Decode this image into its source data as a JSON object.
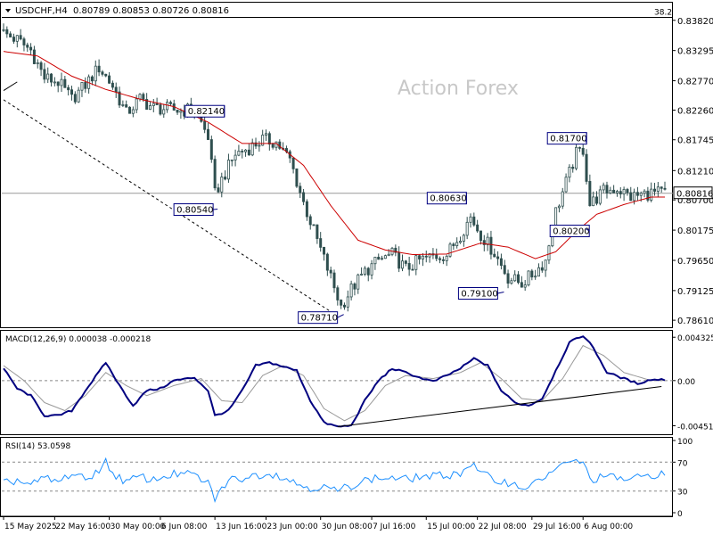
{
  "header": {
    "symbol": "USDCHF,H4",
    "ohlc": "0.80789 0.80853 0.80726 0.80816"
  },
  "watermark": "Action Forex",
  "colors": {
    "candle": "#2f4f4f",
    "ma": "#cc0000",
    "macd": "#000080",
    "macd_signal": "#999999",
    "rsi": "#1e90ff",
    "grid": "#888888",
    "watermark": "#c8c8c8",
    "label_box": "#000080"
  },
  "chart_data": [
    {
      "type": "candlestick",
      "name": "USDCHF H4 price",
      "ylim": [
        0.7855,
        0.8408
      ],
      "y_ticks": [
        "0.83820",
        "0.83295",
        "0.82770",
        "0.82260",
        "0.81745",
        "0.81210",
        "0.80700",
        "0.80175",
        "0.79650",
        "0.79125",
        "0.78610"
      ],
      "current_price": "0.80816",
      "fib_level": {
        "label": "38.2",
        "value": 0.8387
      },
      "annotations": [
        {
          "text": "0.82140",
          "x": 64,
          "value": 0.8214
        },
        {
          "text": "0.80540",
          "x": 62,
          "value": 0.8054
        },
        {
          "text": "0.78710",
          "x": 99,
          "value": 0.7871
        },
        {
          "text": "0.80630",
          "x": 135,
          "value": 0.8063
        },
        {
          "text": "0.79100",
          "x": 146,
          "value": 0.791
        },
        {
          "text": "0.81700",
          "x": 170,
          "value": 0.817
        },
        {
          "text": "0.80200",
          "x": 170,
          "value": 0.802
        }
      ],
      "close_path": [
        [
          0,
          0.836
        ],
        [
          4,
          0.8348
        ],
        [
          8,
          0.833
        ],
        [
          12,
          0.8282
        ],
        [
          16,
          0.8275
        ],
        [
          20,
          0.8245
        ],
        [
          24,
          0.827
        ],
        [
          28,
          0.83
        ],
        [
          32,
          0.8268
        ],
        [
          36,
          0.822
        ],
        [
          40,
          0.8245
        ],
        [
          44,
          0.823
        ],
        [
          48,
          0.8228
        ],
        [
          52,
          0.8225
        ],
        [
          56,
          0.8228
        ],
        [
          60,
          0.818
        ],
        [
          62,
          0.808
        ],
        [
          64,
          0.8105
        ],
        [
          68,
          0.815
        ],
        [
          72,
          0.816
        ],
        [
          76,
          0.8175
        ],
        [
          80,
          0.817
        ],
        [
          84,
          0.814
        ],
        [
          88,
          0.8065
        ],
        [
          92,
          0.8
        ],
        [
          96,
          0.7935
        ],
        [
          99,
          0.7885
        ],
        [
          102,
          0.7915
        ],
        [
          106,
          0.7945
        ],
        [
          110,
          0.7965
        ],
        [
          114,
          0.7975
        ],
        [
          118,
          0.795
        ],
        [
          122,
          0.7965
        ],
        [
          126,
          0.7972
        ],
        [
          130,
          0.7975
        ],
        [
          134,
          0.801
        ],
        [
          137,
          0.804
        ],
        [
          140,
          0.801
        ],
        [
          144,
          0.7978
        ],
        [
          148,
          0.7935
        ],
        [
          152,
          0.7925
        ],
        [
          156,
          0.7945
        ],
        [
          159,
          0.7965
        ],
        [
          162,
          0.805
        ],
        [
          165,
          0.81
        ],
        [
          168,
          0.815
        ],
        [
          170,
          0.8158
        ],
        [
          172,
          0.8062
        ],
        [
          176,
          0.8085
        ],
        [
          180,
          0.809
        ],
        [
          184,
          0.8075
        ],
        [
          188,
          0.808
        ],
        [
          190,
          0.8082
        ]
      ],
      "ma_path": [
        [
          0,
          0.8328
        ],
        [
          10,
          0.832
        ],
        [
          20,
          0.8285
        ],
        [
          30,
          0.8262
        ],
        [
          40,
          0.8245
        ],
        [
          50,
          0.8232
        ],
        [
          60,
          0.8205
        ],
        [
          70,
          0.8168
        ],
        [
          80,
          0.8168
        ],
        [
          88,
          0.813
        ],
        [
          96,
          0.806
        ],
        [
          104,
          0.8
        ],
        [
          112,
          0.7983
        ],
        [
          120,
          0.7975
        ],
        [
          130,
          0.7976
        ],
        [
          140,
          0.7995
        ],
        [
          148,
          0.7988
        ],
        [
          156,
          0.7968
        ],
        [
          162,
          0.798
        ],
        [
          168,
          0.8015
        ],
        [
          174,
          0.8045
        ],
        [
          182,
          0.8062
        ],
        [
          190,
          0.8075
        ]
      ],
      "trendline": {
        "from": [
          0,
          0.8244
        ],
        "to": [
          97,
          0.7872
        ]
      },
      "left_stub": {
        "from": [
          0,
          0.826
        ],
        "to": [
          4,
          0.8275
        ]
      }
    },
    {
      "type": "line",
      "name": "MACD(12,26,9)",
      "label": "MACD(12,26,9) 0.000038 -0.000218",
      "ylim": [
        -0.005,
        0.0047
      ],
      "y_ticks": [
        "0.004325",
        "0.00",
        "-0.004511"
      ],
      "y_tick_values": [
        0.004325,
        0.0,
        -0.004511
      ],
      "macd_path": [
        [
          0,
          0.0012
        ],
        [
          4,
          -0.0008
        ],
        [
          8,
          -0.0015
        ],
        [
          12,
          -0.0035
        ],
        [
          16,
          -0.0035
        ],
        [
          20,
          -0.003
        ],
        [
          24,
          -0.001
        ],
        [
          30,
          0.0018
        ],
        [
          34,
          -0.0005
        ],
        [
          38,
          -0.0025
        ],
        [
          42,
          -0.001
        ],
        [
          46,
          -0.0008
        ],
        [
          50,
          0.0
        ],
        [
          56,
          0.0003
        ],
        [
          60,
          -0.001
        ],
        [
          62,
          -0.0035
        ],
        [
          66,
          -0.003
        ],
        [
          70,
          -0.001
        ],
        [
          74,
          0.0015
        ],
        [
          78,
          0.0018
        ],
        [
          82,
          0.0014
        ],
        [
          86,
          0.001
        ],
        [
          90,
          -0.002
        ],
        [
          94,
          -0.0042
        ],
        [
          98,
          -0.0046
        ],
        [
          102,
          -0.0045
        ],
        [
          106,
          -0.002
        ],
        [
          110,
          0.0
        ],
        [
          114,
          0.0012
        ],
        [
          118,
          0.0008
        ],
        [
          122,
          0.0003
        ],
        [
          126,
          -0.0001
        ],
        [
          130,
          0.0005
        ],
        [
          134,
          0.0012
        ],
        [
          138,
          0.0022
        ],
        [
          142,
          0.0015
        ],
        [
          146,
          -0.001
        ],
        [
          150,
          -0.0022
        ],
        [
          154,
          -0.0025
        ],
        [
          158,
          -0.0018
        ],
        [
          162,
          0.001
        ],
        [
          166,
          0.0038
        ],
        [
          170,
          0.0045
        ],
        [
          173,
          0.0033
        ],
        [
          177,
          0.0008
        ],
        [
          182,
          0.0002
        ],
        [
          186,
          -0.0003
        ],
        [
          190,
          0.0001
        ]
      ],
      "signal_path": [
        [
          0,
          0.0015
        ],
        [
          6,
          0.0
        ],
        [
          12,
          -0.0022
        ],
        [
          18,
          -0.003
        ],
        [
          24,
          -0.0015
        ],
        [
          30,
          0.0008
        ],
        [
          36,
          -0.0005
        ],
        [
          42,
          -0.0015
        ],
        [
          50,
          -0.0005
        ],
        [
          58,
          0.0002
        ],
        [
          64,
          -0.002
        ],
        [
          70,
          -0.0022
        ],
        [
          76,
          0.0005
        ],
        [
          82,
          0.0015
        ],
        [
          88,
          0.0005
        ],
        [
          94,
          -0.0028
        ],
        [
          100,
          -0.004
        ],
        [
          106,
          -0.003
        ],
        [
          112,
          -0.0005
        ],
        [
          118,
          0.0005
        ],
        [
          126,
          0.0002
        ],
        [
          134,
          0.0008
        ],
        [
          140,
          0.0018
        ],
        [
          146,
          0.0002
        ],
        [
          152,
          -0.0018
        ],
        [
          158,
          -0.002
        ],
        [
          164,
          0.0002
        ],
        [
          170,
          0.0035
        ],
        [
          176,
          0.0025
        ],
        [
          182,
          0.0008
        ],
        [
          190,
          0.0
        ]
      ],
      "trendline": {
        "from": [
          98,
          -0.0046
        ],
        "to": [
          193,
          -0.0006
        ]
      }
    },
    {
      "type": "line",
      "name": "RSI(14)",
      "label": "RSI(14) 53.0598",
      "ylim": [
        0,
        100
      ],
      "y_ticks": [
        "100",
        "70",
        "30",
        "0"
      ],
      "y_tick_values": [
        100,
        70,
        30,
        0
      ],
      "levels": [
        70,
        30
      ],
      "rsi_path": [
        [
          0,
          40
        ],
        [
          4,
          45
        ],
        [
          8,
          38
        ],
        [
          12,
          48
        ],
        [
          16,
          42
        ],
        [
          20,
          55
        ],
        [
          24,
          45
        ],
        [
          28,
          60
        ],
        [
          30,
          70
        ],
        [
          32,
          55
        ],
        [
          36,
          42
        ],
        [
          40,
          50
        ],
        [
          44,
          45
        ],
        [
          48,
          52
        ],
        [
          52,
          54
        ],
        [
          56,
          52
        ],
        [
          60,
          40
        ],
        [
          62,
          20
        ],
        [
          66,
          45
        ],
        [
          70,
          48
        ],
        [
          74,
          52
        ],
        [
          78,
          55
        ],
        [
          82,
          50
        ],
        [
          86,
          40
        ],
        [
          90,
          35
        ],
        [
          94,
          35
        ],
        [
          98,
          30
        ],
        [
          102,
          38
        ],
        [
          106,
          45
        ],
        [
          110,
          48
        ],
        [
          114,
          48
        ],
        [
          118,
          46
        ],
        [
          122,
          50
        ],
        [
          126,
          50
        ],
        [
          130,
          52
        ],
        [
          134,
          55
        ],
        [
          137,
          68
        ],
        [
          140,
          55
        ],
        [
          144,
          45
        ],
        [
          148,
          42
        ],
        [
          152,
          35
        ],
        [
          156,
          40
        ],
        [
          160,
          55
        ],
        [
          164,
          65
        ],
        [
          168,
          72
        ],
        [
          170,
          70
        ],
        [
          172,
          45
        ],
        [
          176,
          50
        ],
        [
          180,
          48
        ],
        [
          184,
          46
        ],
        [
          188,
          50
        ],
        [
          190,
          53
        ]
      ]
    }
  ],
  "x_axis": {
    "bars_total": 195,
    "labels": [
      {
        "text": "15 May 2025",
        "x": 0
      },
      {
        "text": "22 May 16:00",
        "x": 15
      },
      {
        "text": "30 May 00:00",
        "x": 31
      },
      {
        "text": "6 Jun 08:00",
        "x": 46
      },
      {
        "text": "13 Jun 16:00",
        "x": 62
      },
      {
        "text": "23 Jun 00:00",
        "x": 77
      },
      {
        "text": "30 Jun 08:00",
        "x": 93
      },
      {
        "text": "7 Jul 16:00",
        "x": 108
      },
      {
        "text": "15 Jul 00:00",
        "x": 124
      },
      {
        "text": "22 Jul 08:00",
        "x": 139
      },
      {
        "text": "29 Jul 16:00",
        "x": 155
      },
      {
        "text": "6 Aug 00:00",
        "x": 170
      }
    ]
  }
}
